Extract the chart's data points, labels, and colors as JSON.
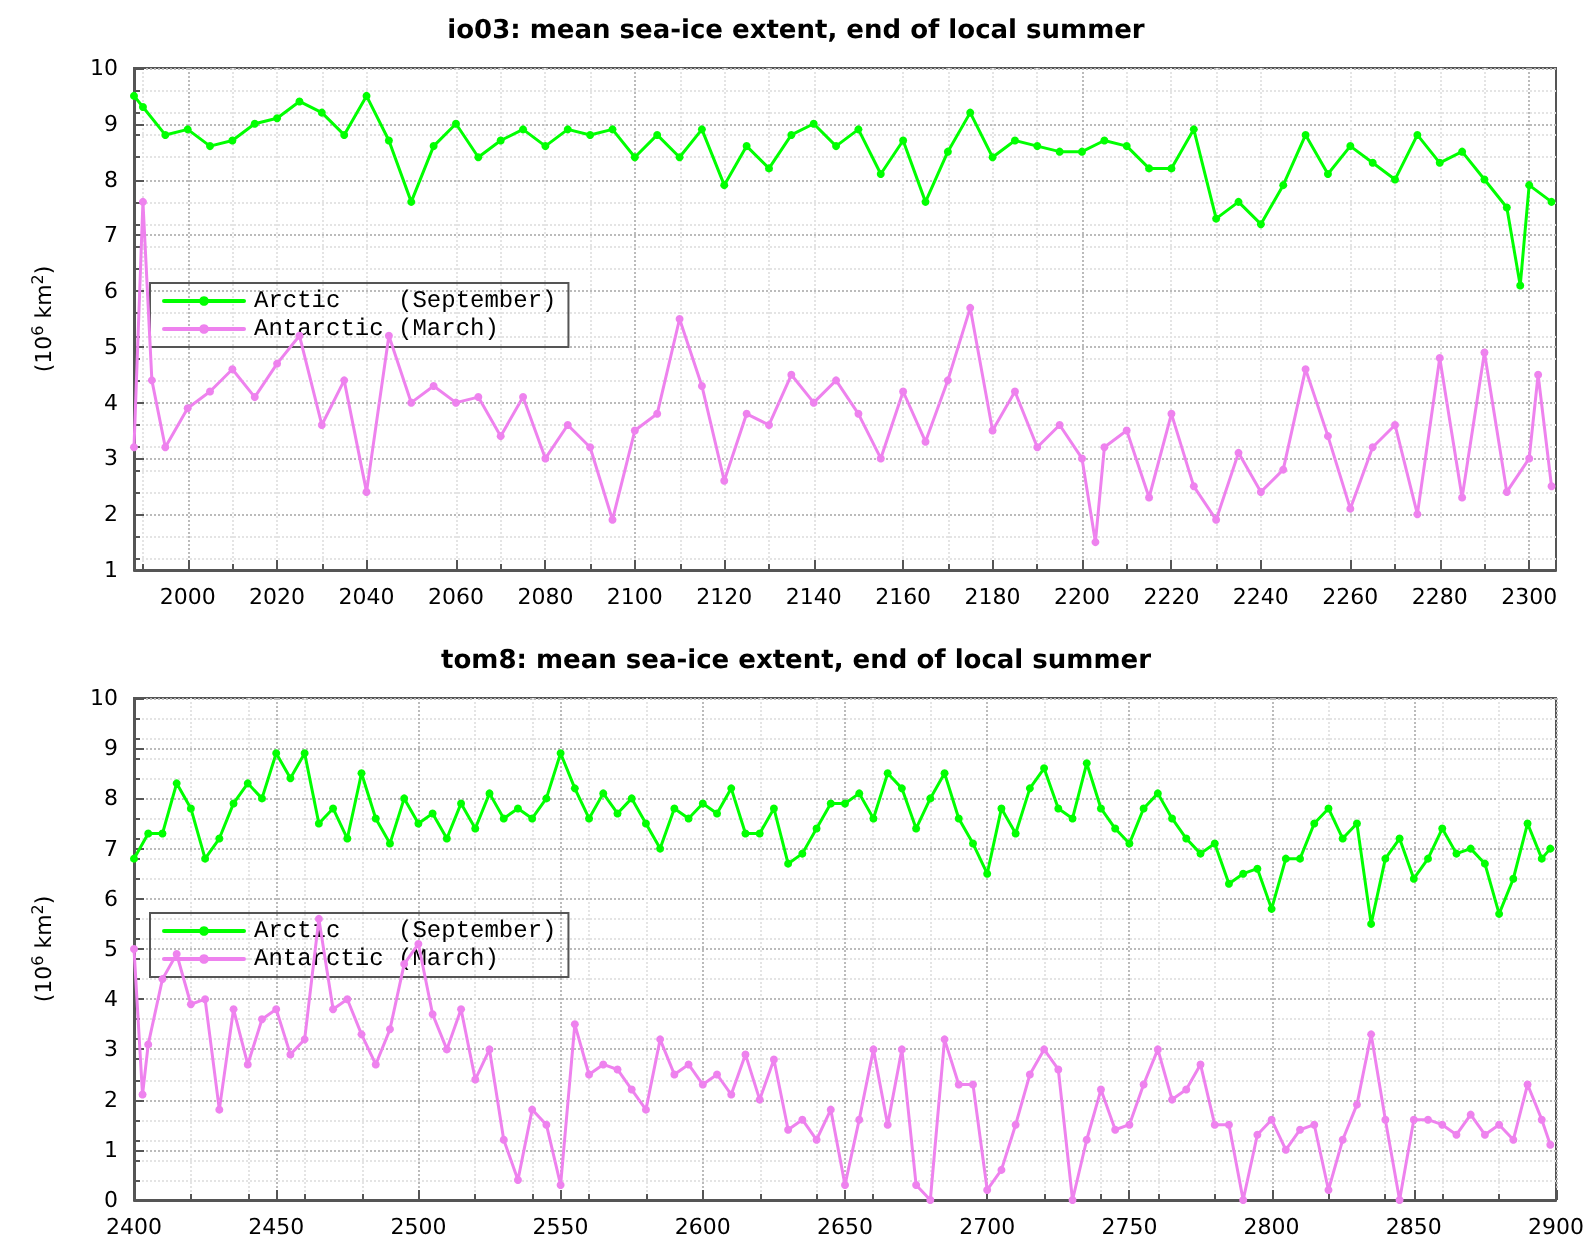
{
  "chart_data": [
    {
      "type": "line",
      "title": "io03: mean sea-ice extent, end of local summer",
      "ylabel": "(10$^{6}$ km$^{2}$)",
      "xlim": [
        1988,
        2306
      ],
      "xticks": [
        2000,
        2020,
        2040,
        2060,
        2080,
        2100,
        2120,
        2140,
        2160,
        2180,
        2200,
        2220,
        2240,
        2260,
        2280,
        2300
      ],
      "ylim": [
        1,
        10
      ],
      "yticks": [
        1,
        2,
        3,
        4,
        5,
        6,
        7,
        8,
        9,
        10
      ],
      "grid": true,
      "legend": "left",
      "marker": "circle",
      "line_style": "solid",
      "series": [
        {
          "name": "Arctic    (September)",
          "color": "#00ff00",
          "x": [
            1988,
            1990,
            1995,
            2000,
            2005,
            2010,
            2015,
            2020,
            2025,
            2030,
            2035,
            2040,
            2045,
            2050,
            2055,
            2060,
            2065,
            2070,
            2075,
            2080,
            2085,
            2090,
            2095,
            2100,
            2105,
            2110,
            2115,
            2120,
            2125,
            2130,
            2135,
            2140,
            2145,
            2150,
            2155,
            2160,
            2165,
            2170,
            2175,
            2180,
            2185,
            2190,
            2195,
            2200,
            2205,
            2210,
            2215,
            2220,
            2225,
            2230,
            2235,
            2240,
            2245,
            2250,
            2255,
            2260,
            2265,
            2270,
            2275,
            2280,
            2285,
            2290,
            2295,
            2298,
            2300,
            2305
          ],
          "values": [
            9.5,
            9.3,
            8.8,
            8.9,
            8.6,
            8.7,
            9.0,
            9.1,
            9.4,
            9.2,
            8.8,
            9.5,
            8.7,
            7.6,
            8.6,
            9.0,
            8.4,
            8.7,
            8.9,
            8.6,
            8.9,
            8.8,
            8.9,
            8.4,
            8.8,
            8.4,
            8.9,
            7.9,
            8.6,
            8.2,
            8.8,
            9.0,
            8.6,
            8.9,
            8.1,
            8.7,
            7.6,
            8.5,
            9.2,
            8.4,
            8.7,
            8.6,
            8.5,
            8.5,
            8.7,
            8.6,
            8.2,
            8.2,
            8.9,
            7.3,
            7.6,
            7.2,
            7.9,
            8.8,
            8.1,
            8.6,
            8.3,
            8.0,
            8.8,
            8.3,
            8.5,
            8.0,
            7.5,
            6.1,
            7.9,
            7.6
          ]
        },
        {
          "name": "Antarctic (March)",
          "color": "#ee82ee",
          "x": [
            1988,
            1990,
            1992,
            1995,
            2000,
            2005,
            2010,
            2015,
            2020,
            2025,
            2030,
            2035,
            2040,
            2045,
            2050,
            2055,
            2060,
            2065,
            2070,
            2075,
            2080,
            2085,
            2090,
            2095,
            2100,
            2105,
            2110,
            2115,
            2120,
            2125,
            2130,
            2135,
            2140,
            2145,
            2150,
            2155,
            2160,
            2165,
            2170,
            2175,
            2180,
            2185,
            2190,
            2195,
            2200,
            2203,
            2205,
            2210,
            2215,
            2220,
            2225,
            2230,
            2235,
            2240,
            2245,
            2250,
            2255,
            2260,
            2265,
            2270,
            2275,
            2280,
            2285,
            2290,
            2295,
            2300,
            2302,
            2305
          ],
          "values": [
            3.2,
            7.6,
            4.4,
            3.2,
            3.9,
            4.2,
            4.6,
            4.1,
            4.7,
            5.2,
            3.6,
            4.4,
            2.4,
            5.2,
            4.0,
            4.3,
            4.0,
            4.1,
            3.4,
            4.1,
            3.0,
            3.6,
            3.2,
            1.9,
            3.5,
            3.8,
            5.5,
            4.3,
            2.6,
            3.8,
            3.6,
            4.5,
            4.0,
            4.4,
            3.8,
            3.0,
            4.2,
            3.3,
            4.4,
            5.7,
            3.5,
            4.2,
            3.2,
            3.6,
            3.0,
            1.5,
            3.2,
            3.5,
            2.3,
            3.8,
            2.5,
            1.9,
            3.1,
            2.4,
            2.8,
            4.6,
            3.4,
            2.1,
            3.2,
            3.6,
            2.0,
            4.8,
            2.3,
            4.9,
            2.4,
            3.0,
            4.5,
            2.5
          ]
        }
      ]
    },
    {
      "type": "line",
      "title": "tom8: mean sea-ice extent, end of local summer",
      "ylabel": "(10$^{6}$ km$^{2}$)",
      "xlim": [
        2400,
        2900
      ],
      "xticks": [
        2400,
        2450,
        2500,
        2550,
        2600,
        2650,
        2700,
        2750,
        2800,
        2850,
        2900
      ],
      "ylim": [
        0,
        10
      ],
      "yticks": [
        0,
        1,
        2,
        3,
        4,
        5,
        6,
        7,
        8,
        9,
        10
      ],
      "grid": true,
      "legend": "left",
      "marker": "circle",
      "line_style": "solid",
      "series": [
        {
          "name": "Arctic    (September)",
          "color": "#00ff00",
          "x": [
            2400,
            2405,
            2410,
            2415,
            2420,
            2425,
            2430,
            2435,
            2440,
            2445,
            2450,
            2455,
            2460,
            2465,
            2470,
            2475,
            2480,
            2485,
            2490,
            2495,
            2500,
            2505,
            2510,
            2515,
            2520,
            2525,
            2530,
            2535,
            2540,
            2545,
            2550,
            2555,
            2560,
            2565,
            2570,
            2575,
            2580,
            2585,
            2590,
            2595,
            2600,
            2605,
            2610,
            2615,
            2620,
            2625,
            2630,
            2635,
            2640,
            2645,
            2650,
            2655,
            2660,
            2665,
            2670,
            2675,
            2680,
            2685,
            2690,
            2695,
            2700,
            2705,
            2710,
            2715,
            2720,
            2725,
            2730,
            2735,
            2740,
            2745,
            2750,
            2755,
            2760,
            2765,
            2770,
            2775,
            2780,
            2785,
            2790,
            2795,
            2800,
            2805,
            2810,
            2815,
            2820,
            2825,
            2830,
            2835,
            2840,
            2845,
            2850,
            2855,
            2860,
            2865,
            2870,
            2875,
            2880,
            2885,
            2890,
            2895,
            2898
          ],
          "values": [
            6.8,
            7.3,
            7.3,
            8.3,
            7.8,
            6.8,
            7.2,
            7.9,
            8.3,
            8.0,
            8.9,
            8.4,
            8.9,
            7.5,
            7.8,
            7.2,
            8.5,
            7.6,
            7.1,
            8.0,
            7.5,
            7.7,
            7.2,
            7.9,
            7.4,
            8.1,
            7.6,
            7.8,
            7.6,
            8.0,
            8.9,
            8.2,
            7.6,
            8.1,
            7.7,
            8.0,
            7.5,
            7.0,
            7.8,
            7.6,
            7.9,
            7.7,
            8.2,
            7.3,
            7.3,
            7.8,
            6.7,
            6.9,
            7.4,
            7.9,
            7.9,
            8.1,
            7.6,
            8.5,
            8.2,
            7.4,
            8.0,
            8.5,
            7.6,
            7.1,
            6.5,
            7.8,
            7.3,
            8.2,
            8.6,
            7.8,
            7.6,
            8.7,
            7.8,
            7.4,
            7.1,
            7.8,
            8.1,
            7.6,
            7.2,
            6.9,
            7.1,
            6.3,
            6.5,
            6.6,
            5.8,
            6.8,
            6.8,
            7.5,
            7.8,
            7.2,
            7.5,
            5.5,
            6.8,
            7.2,
            6.4,
            6.8,
            7.4,
            6.9,
            7.0,
            6.7,
            5.7,
            6.4,
            7.5,
            6.8,
            7.0
          ]
        },
        {
          "name": "Antarctic (March)",
          "color": "#ee82ee",
          "x": [
            2400,
            2403,
            2405,
            2410,
            2415,
            2420,
            2425,
            2430,
            2435,
            2440,
            2445,
            2450,
            2455,
            2460,
            2465,
            2470,
            2475,
            2480,
            2485,
            2490,
            2495,
            2500,
            2505,
            2510,
            2515,
            2520,
            2525,
            2530,
            2535,
            2540,
            2545,
            2550,
            2555,
            2560,
            2565,
            2570,
            2575,
            2580,
            2585,
            2590,
            2595,
            2600,
            2605,
            2610,
            2615,
            2620,
            2625,
            2630,
            2635,
            2640,
            2645,
            2650,
            2655,
            2660,
            2665,
            2670,
            2675,
            2680,
            2685,
            2690,
            2695,
            2700,
            2705,
            2710,
            2715,
            2720,
            2725,
            2730,
            2735,
            2740,
            2745,
            2750,
            2755,
            2760,
            2765,
            2770,
            2775,
            2780,
            2785,
            2790,
            2795,
            2800,
            2805,
            2810,
            2815,
            2820,
            2825,
            2830,
            2835,
            2840,
            2845,
            2850,
            2855,
            2860,
            2865,
            2870,
            2875,
            2880,
            2885,
            2890,
            2895,
            2898
          ],
          "values": [
            5.0,
            2.1,
            3.1,
            4.4,
            4.9,
            3.9,
            4.0,
            1.8,
            3.8,
            2.7,
            3.6,
            3.8,
            2.9,
            3.2,
            5.6,
            3.8,
            4.0,
            3.3,
            2.7,
            3.4,
            4.7,
            5.1,
            3.7,
            3.0,
            3.8,
            2.4,
            3.0,
            1.2,
            0.4,
            1.8,
            1.5,
            0.3,
            3.5,
            2.5,
            2.7,
            2.6,
            2.2,
            1.8,
            3.2,
            2.5,
            2.7,
            2.3,
            2.5,
            2.1,
            2.9,
            2.0,
            2.8,
            1.4,
            1.6,
            1.2,
            1.8,
            0.3,
            1.6,
            3.0,
            1.5,
            3.0,
            0.3,
            0.0,
            3.2,
            2.3,
            2.3,
            0.2,
            0.6,
            1.5,
            2.5,
            3.0,
            2.6,
            0.0,
            1.2,
            2.2,
            1.4,
            1.5,
            2.3,
            3.0,
            2.0,
            2.2,
            2.7,
            1.5,
            1.5,
            0.0,
            1.3,
            1.6,
            1.0,
            1.4,
            1.5,
            0.2,
            1.2,
            1.9,
            3.3,
            1.6,
            0.0,
            1.6,
            1.6,
            1.5,
            1.3,
            1.7,
            1.3,
            1.5,
            1.2,
            2.3,
            1.6,
            1.1
          ]
        }
      ]
    }
  ]
}
